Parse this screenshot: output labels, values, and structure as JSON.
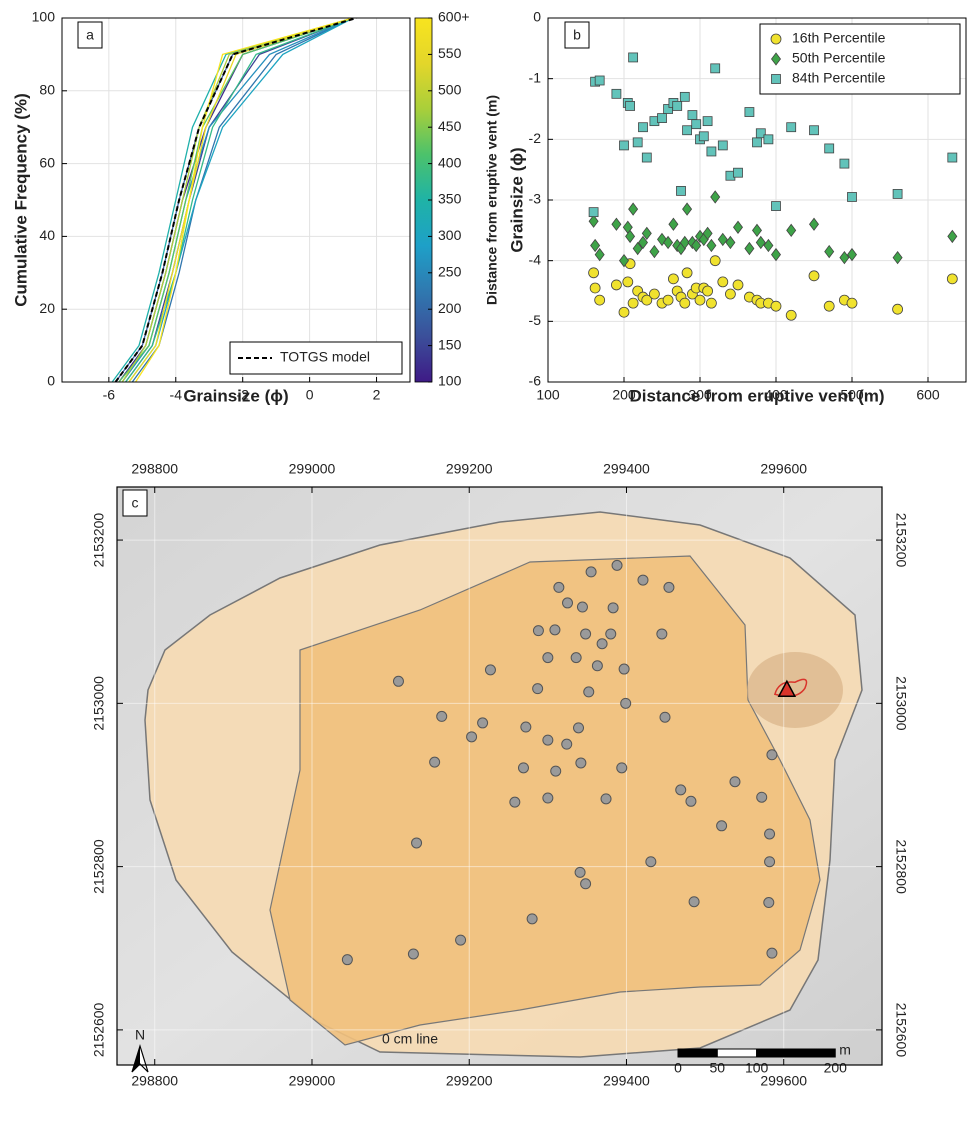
{
  "chart_data": [
    {
      "type": "line",
      "panel_label": "a",
      "xlabel": "Grainsize (ϕ)",
      "ylabel": "Cumulative Frequency (%)",
      "xlim": [
        -7.4,
        3
      ],
      "xticks": [
        -6,
        -4,
        -2,
        0,
        2
      ],
      "ylim": [
        0,
        100
      ],
      "yticks": [
        0,
        20,
        40,
        60,
        80,
        100
      ],
      "grid": true,
      "legend": "lower right",
      "series": [
        {
          "distance": 120,
          "x": [
            -5.7,
            -4.9,
            -4.3,
            -3.8,
            -3.1,
            -2.0,
            1.3
          ],
          "values": [
            0,
            10,
            30,
            50,
            70,
            90,
            100
          ]
        },
        {
          "distance": 150,
          "x": [
            -5.5,
            -4.7,
            -4.1,
            -3.6,
            -3.0,
            -1.5,
            1.3
          ],
          "values": [
            0,
            10,
            30,
            50,
            70,
            90,
            100
          ]
        },
        {
          "distance": 180,
          "x": [
            -5.8,
            -5.0,
            -4.4,
            -3.9,
            -3.3,
            -2.3,
            1.3
          ],
          "values": [
            0,
            10,
            30,
            50,
            70,
            90,
            100
          ]
        },
        {
          "distance": 220,
          "x": [
            -5.3,
            -4.5,
            -3.9,
            -3.4,
            -2.7,
            -1.0,
            1.3
          ],
          "values": [
            0,
            10,
            30,
            50,
            70,
            90,
            100
          ]
        },
        {
          "distance": 260,
          "x": [
            -5.6,
            -4.8,
            -4.2,
            -3.7,
            -3.0,
            -1.2,
            1.3
          ],
          "values": [
            0,
            10,
            30,
            50,
            70,
            90,
            100
          ]
        },
        {
          "distance": 300,
          "x": [
            -5.4,
            -4.6,
            -4.0,
            -3.4,
            -2.6,
            -0.8,
            1.3
          ],
          "values": [
            0,
            10,
            30,
            50,
            70,
            90,
            100
          ]
        },
        {
          "distance": 340,
          "x": [
            -5.9,
            -5.1,
            -4.5,
            -4.0,
            -3.5,
            -2.5,
            1.3
          ],
          "values": [
            0,
            10,
            30,
            50,
            70,
            90,
            100
          ]
        },
        {
          "distance": 380,
          "x": [
            -5.5,
            -4.7,
            -4.0,
            -3.5,
            -2.9,
            -1.6,
            1.3
          ],
          "values": [
            0,
            10,
            30,
            50,
            70,
            90,
            100
          ]
        },
        {
          "distance": 420,
          "x": [
            -5.7,
            -4.8,
            -4.2,
            -3.7,
            -3.2,
            -2.0,
            1.3
          ],
          "values": [
            0,
            10,
            30,
            50,
            70,
            90,
            100
          ]
        },
        {
          "distance": 480,
          "x": [
            -5.6,
            -4.9,
            -4.3,
            -3.8,
            -3.3,
            -2.4,
            1.3
          ],
          "values": [
            0,
            10,
            30,
            50,
            70,
            90,
            100
          ]
        },
        {
          "distance": 560,
          "x": [
            -5.4,
            -4.6,
            -4.1,
            -3.6,
            -3.1,
            -2.2,
            1.3
          ],
          "values": [
            0,
            10,
            30,
            50,
            70,
            90,
            100
          ]
        },
        {
          "distance": 620,
          "x": [
            -5.2,
            -4.5,
            -4.0,
            -3.6,
            -3.2,
            -2.6,
            1.3
          ],
          "values": [
            0,
            10,
            30,
            50,
            70,
            90,
            100
          ]
        }
      ],
      "model": {
        "name": "TOTGS model",
        "color": "#000000",
        "x": [
          -5.8,
          -5.0,
          -4.4,
          -3.9,
          -3.3,
          -2.3,
          1.4
        ],
        "values": [
          0,
          10,
          30,
          50,
          70,
          90,
          100
        ]
      },
      "colorbar": {
        "label": "Distance from eruptive vent (m)",
        "lim": [
          100,
          600
        ],
        "ticks": [
          100,
          150,
          200,
          250,
          300,
          350,
          400,
          450,
          500,
          550,
          {
            "value": 600,
            "label": "600+"
          }
        ],
        "colormap": [
          "#3e1a86",
          "#3b4f9a",
          "#2f79b0",
          "#1ea0c8",
          "#1fb3a6",
          "#4cc26b",
          "#a9cf3a",
          "#e3d62a",
          "#f8e41f"
        ]
      }
    },
    {
      "type": "scatter",
      "panel_label": "b",
      "xlabel": "Distance from eruptive vent (m)",
      "ylabel": "Grainsize (ϕ)",
      "xlim": [
        100,
        650
      ],
      "xticks": [
        100,
        200,
        300,
        400,
        500,
        600
      ],
      "ylim": [
        -6,
        0
      ],
      "yticks": [
        -6,
        -5,
        -4,
        -3,
        -2,
        -1,
        0
      ],
      "grid": true,
      "legend": "upper right",
      "x": [
        160,
        162,
        168,
        190,
        200,
        205,
        208,
        212,
        218,
        225,
        230,
        240,
        250,
        258,
        265,
        270,
        275,
        280,
        283,
        290,
        295,
        300,
        305,
        310,
        315,
        320,
        330,
        340,
        350,
        365,
        375,
        380,
        390,
        400,
        420,
        450,
        470,
        490,
        500,
        560,
        632
      ],
      "series": [
        {
          "name": "16th Percentile",
          "color": "#f0e22e",
          "marker": "circle",
          "values": [
            -4.2,
            -4.45,
            -4.65,
            -4.4,
            -4.85,
            -4.35,
            -4.05,
            -4.7,
            -4.5,
            -4.6,
            -4.65,
            -4.55,
            -4.7,
            -4.65,
            -4.3,
            -4.5,
            -4.6,
            -4.7,
            -4.2,
            -4.55,
            -4.45,
            -4.65,
            -4.45,
            -4.5,
            -4.7,
            -4.0,
            -4.35,
            -4.55,
            -4.4,
            -4.6,
            -4.65,
            -4.7,
            -4.7,
            -4.75,
            -4.9,
            -4.25,
            -4.75,
            -4.65,
            -4.7,
            -4.8,
            -4.3
          ]
        },
        {
          "name": "50th Percentile",
          "color": "#3ea348",
          "marker": "diamond",
          "values": [
            -3.35,
            -3.75,
            -3.9,
            -3.4,
            -4.0,
            -3.45,
            -3.6,
            -3.15,
            -3.8,
            -3.7,
            -3.55,
            -3.85,
            -3.65,
            -3.7,
            -3.4,
            -3.75,
            -3.8,
            -3.7,
            -3.15,
            -3.7,
            -3.75,
            -3.6,
            -3.65,
            -3.55,
            -3.75,
            -2.95,
            -3.65,
            -3.7,
            -3.45,
            -3.8,
            -3.5,
            -3.7,
            -3.75,
            -3.9,
            -3.5,
            -3.4,
            -3.85,
            -3.95,
            -3.9,
            -3.95,
            -3.6
          ]
        },
        {
          "name": "84th Percentile",
          "color": "#62c3ba",
          "marker": "square",
          "values": [
            -3.2,
            -1.05,
            -1.03,
            -1.25,
            -2.1,
            -1.4,
            -1.45,
            -0.65,
            -2.05,
            -1.8,
            -2.3,
            -1.7,
            -1.65,
            -1.5,
            -1.4,
            -1.45,
            -2.85,
            -1.3,
            -1.85,
            -1.6,
            -1.75,
            -2.0,
            -1.95,
            -1.7,
            -2.2,
            -0.83,
            -2.1,
            -2.6,
            -2.55,
            -1.55,
            -2.05,
            -1.9,
            -2.0,
            -3.1,
            -1.8,
            -1.85,
            -2.15,
            -2.4,
            -2.95,
            -2.9,
            -2.3
          ]
        }
      ]
    },
    {
      "type": "map",
      "panel_label": "c",
      "xlim": [
        298752,
        299725
      ],
      "xticks": [
        298800,
        299000,
        299200,
        299400,
        299600
      ],
      "ylim": [
        2152557,
        2153265
      ],
      "yticks": [
        2152600,
        2152800,
        2153000,
        2153200
      ],
      "grid": true,
      "points": {
        "color": "#9a9a9a",
        "x": [
          299314,
          299355,
          299388,
          299421,
          299454,
          299325,
          299344,
          299383,
          299288,
          299309,
          299348,
          299380,
          299445,
          299227,
          299110,
          299300,
          299336,
          299363,
          299369,
          299397,
          299287,
          299352,
          299399,
          299165,
          299217,
          299272,
          299300,
          299339,
          299449,
          299203,
          299324,
          299156,
          299269,
          299310,
          299342,
          299394,
          299585,
          299538,
          299469,
          299482,
          299572,
          299258,
          299300,
          299374,
          299133,
          299521,
          299582,
          299341,
          299348,
          299431,
          299582,
          299486,
          299280,
          299581,
          299189,
          299129,
          299045,
          299585
        ],
        "values": [
          2153142,
          2153161,
          2153169,
          2153151,
          2153142,
          2153123,
          2153118,
          2153117,
          2153089,
          2153090,
          2153085,
          2153085,
          2153085,
          2153041,
          2153027,
          2153056,
          2153056,
          2153046,
          2153073,
          2153042,
          2153018,
          2153014,
          2153000,
          2152984,
          2152976,
          2152971,
          2152955,
          2152970,
          2152983,
          2152959,
          2152950,
          2152928,
          2152921,
          2152917,
          2152927,
          2152921,
          2152937,
          2152904,
          2152894,
          2152880,
          2152885,
          2152879,
          2152884,
          2152883,
          2152829,
          2152850,
          2152840,
          2152793,
          2152779,
          2152806,
          2152806,
          2152757,
          2152736,
          2152756,
          2152710,
          2152693,
          2152686,
          2152694
        ]
      },
      "vent": {
        "color": "#d9342b",
        "x": 299604,
        "y": 2153016
      },
      "annotation": "0 cm line",
      "north": "N",
      "scale_bar": {
        "ticks": [
          0,
          50,
          100,
          200
        ],
        "unit": "m"
      }
    }
  ]
}
